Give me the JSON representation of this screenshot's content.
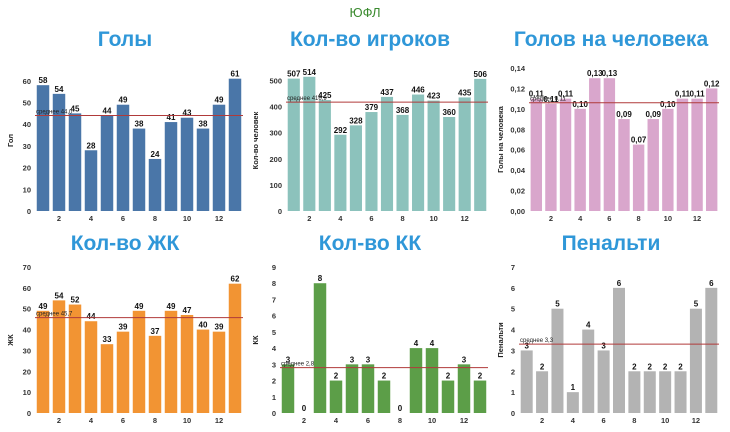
{
  "suptitle": "ЮФЛ",
  "chart_data": [
    {
      "type": "bar",
      "title": "Голы",
      "ylabel": "Гол",
      "categories": [
        "1",
        "2",
        "3",
        "4",
        "5",
        "6",
        "7",
        "8",
        "9",
        "10",
        "11",
        "12",
        "13"
      ],
      "x_tick_labels": [
        "2",
        "4",
        "6",
        "8",
        "10",
        "12"
      ],
      "values": [
        58,
        54,
        45,
        28,
        44,
        49,
        38,
        24,
        41,
        43,
        38,
        49,
        61
      ],
      "value_labels": [
        "58",
        "54",
        "45",
        "28",
        "44",
        "49",
        "38",
        "24",
        "41",
        "43",
        "38",
        "49",
        "61"
      ],
      "average": 44.0,
      "average_label": "среднее 44,0",
      "ylim": [
        0,
        65
      ],
      "yticks": [
        0,
        10,
        20,
        30,
        40,
        50,
        60
      ],
      "ytick_labels": [
        "0",
        "10",
        "20",
        "30",
        "40",
        "50",
        "60"
      ],
      "color": "#4a76a8",
      "grid": false
    },
    {
      "type": "bar",
      "title": "Кол-во игроков",
      "ylabel": "Кол-во человек",
      "categories": [
        "1",
        "2",
        "3",
        "4",
        "5",
        "6",
        "7",
        "8",
        "9",
        "10",
        "11",
        "12",
        "13"
      ],
      "x_tick_labels": [
        "2",
        "4",
        "6",
        "8",
        "10",
        "12"
      ],
      "values": [
        507,
        514,
        425,
        292,
        328,
        379,
        437,
        368,
        446,
        423,
        360,
        435,
        506
      ],
      "value_labels": [
        "507",
        "514",
        "425",
        "292",
        "328",
        "379",
        "437",
        "368",
        "446",
        "423",
        "360",
        "435",
        "506"
      ],
      "average": 416.9,
      "average_label": "среднее 416,9",
      "ylim": [
        0,
        540
      ],
      "yticks": [
        0,
        100,
        200,
        300,
        400,
        500
      ],
      "ytick_labels": [
        "0",
        "100",
        "200",
        "300",
        "400",
        "500"
      ],
      "color": "#8cc2bc",
      "grid": false
    },
    {
      "type": "bar",
      "title": "Голов на человека",
      "ylabel": "Голы на человека",
      "categories": [
        "1",
        "2",
        "3",
        "4",
        "5",
        "6",
        "7",
        "8",
        "9",
        "10",
        "11",
        "12",
        "13"
      ],
      "x_tick_labels": [
        "2",
        "4",
        "6",
        "8",
        "10",
        "12"
      ],
      "values": [
        0.11,
        0.105,
        0.11,
        0.1,
        0.13,
        0.13,
        0.09,
        0.065,
        0.09,
        0.1,
        0.11,
        0.11,
        0.12
      ],
      "value_labels": [
        "0,11",
        "0,11",
        "0,11",
        "0,10",
        "0,13",
        "0,13",
        "0,09",
        "0,07",
        "0,09",
        "0,10",
        "0,11",
        "0,11",
        "0,12"
      ],
      "average": 0.106,
      "average_label": "среднее 0,11",
      "ylim": [
        0,
        0.14
      ],
      "yticks": [
        0,
        0.02,
        0.04,
        0.06,
        0.08,
        0.1,
        0.12,
        0.14
      ],
      "ytick_labels": [
        "0,00",
        "0,02",
        "0,04",
        "0,06",
        "0,08",
        "0,10",
        "0,12",
        "0,14"
      ],
      "color": "#d9a6cc",
      "grid": false
    },
    {
      "type": "bar",
      "title": "Кол-во ЖК",
      "ylabel": "ЖК",
      "categories": [
        "1",
        "2",
        "3",
        "4",
        "5",
        "6",
        "7",
        "8",
        "9",
        "10",
        "11",
        "12",
        "13"
      ],
      "x_tick_labels": [
        "2",
        "4",
        "6",
        "8",
        "10",
        "12"
      ],
      "values": [
        49,
        54,
        52,
        44,
        33,
        39,
        49,
        37,
        49,
        47,
        40,
        39,
        62
      ],
      "value_labels": [
        "49",
        "54",
        "52",
        "44",
        "33",
        "39",
        "49",
        "37",
        "49",
        "47",
        "40",
        "39",
        "62"
      ],
      "average": 45.7,
      "average_label": "среднее 45,7",
      "ylim": [
        0,
        70
      ],
      "yticks": [
        0,
        10,
        20,
        30,
        40,
        50,
        60,
        70
      ],
      "ytick_labels": [
        "0",
        "10",
        "20",
        "30",
        "40",
        "50",
        "60",
        "70"
      ],
      "color": "#f29433",
      "grid": false
    },
    {
      "type": "bar",
      "title": "Кол-во КК",
      "ylabel": "КК",
      "categories": [
        "1",
        "2",
        "3",
        "4",
        "5",
        "6",
        "7",
        "8",
        "9",
        "10",
        "11",
        "12",
        "13"
      ],
      "x_tick_labels": [
        "2",
        "4",
        "6",
        "8",
        "10",
        "12"
      ],
      "values": [
        3,
        0,
        8,
        2,
        3,
        3,
        2,
        0,
        4,
        4,
        2,
        3,
        2
      ],
      "value_labels": [
        "3",
        "0",
        "8",
        "2",
        "3",
        "3",
        "2",
        "0",
        "4",
        "4",
        "2",
        "3",
        "2"
      ],
      "average": 2.8,
      "average_label": "среднее 2,8",
      "ylim": [
        0,
        9
      ],
      "yticks": [
        0,
        1,
        2,
        3,
        4,
        5,
        6,
        7,
        8,
        9
      ],
      "ytick_labels": [
        "0",
        "1",
        "2",
        "3",
        "4",
        "5",
        "6",
        "7",
        "8",
        "9"
      ],
      "color": "#5c9e48",
      "grid": false
    },
    {
      "type": "bar",
      "title": "Пенальти",
      "ylabel": "Пенальти",
      "categories": [
        "1",
        "2",
        "3",
        "4",
        "5",
        "6",
        "7",
        "8",
        "9",
        "10",
        "11",
        "12",
        "13"
      ],
      "x_tick_labels": [
        "2",
        "4",
        "6",
        "8",
        "10",
        "12"
      ],
      "values": [
        3,
        2,
        5,
        1,
        4,
        3,
        6,
        2,
        2,
        2,
        2,
        5,
        6
      ],
      "value_labels": [
        "3",
        "2",
        "5",
        "1",
        "4",
        "3",
        "6",
        "2",
        "2",
        "2",
        "2",
        "5",
        "6"
      ],
      "average": 3.3,
      "average_label": "среднее 3,3",
      "ylim": [
        0,
        7
      ],
      "yticks": [
        0,
        1,
        2,
        3,
        4,
        5,
        6,
        7
      ],
      "ytick_labels": [
        "0",
        "1",
        "2",
        "3",
        "4",
        "5",
        "6",
        "7"
      ],
      "color": "#b3b3b3",
      "grid": false
    }
  ]
}
